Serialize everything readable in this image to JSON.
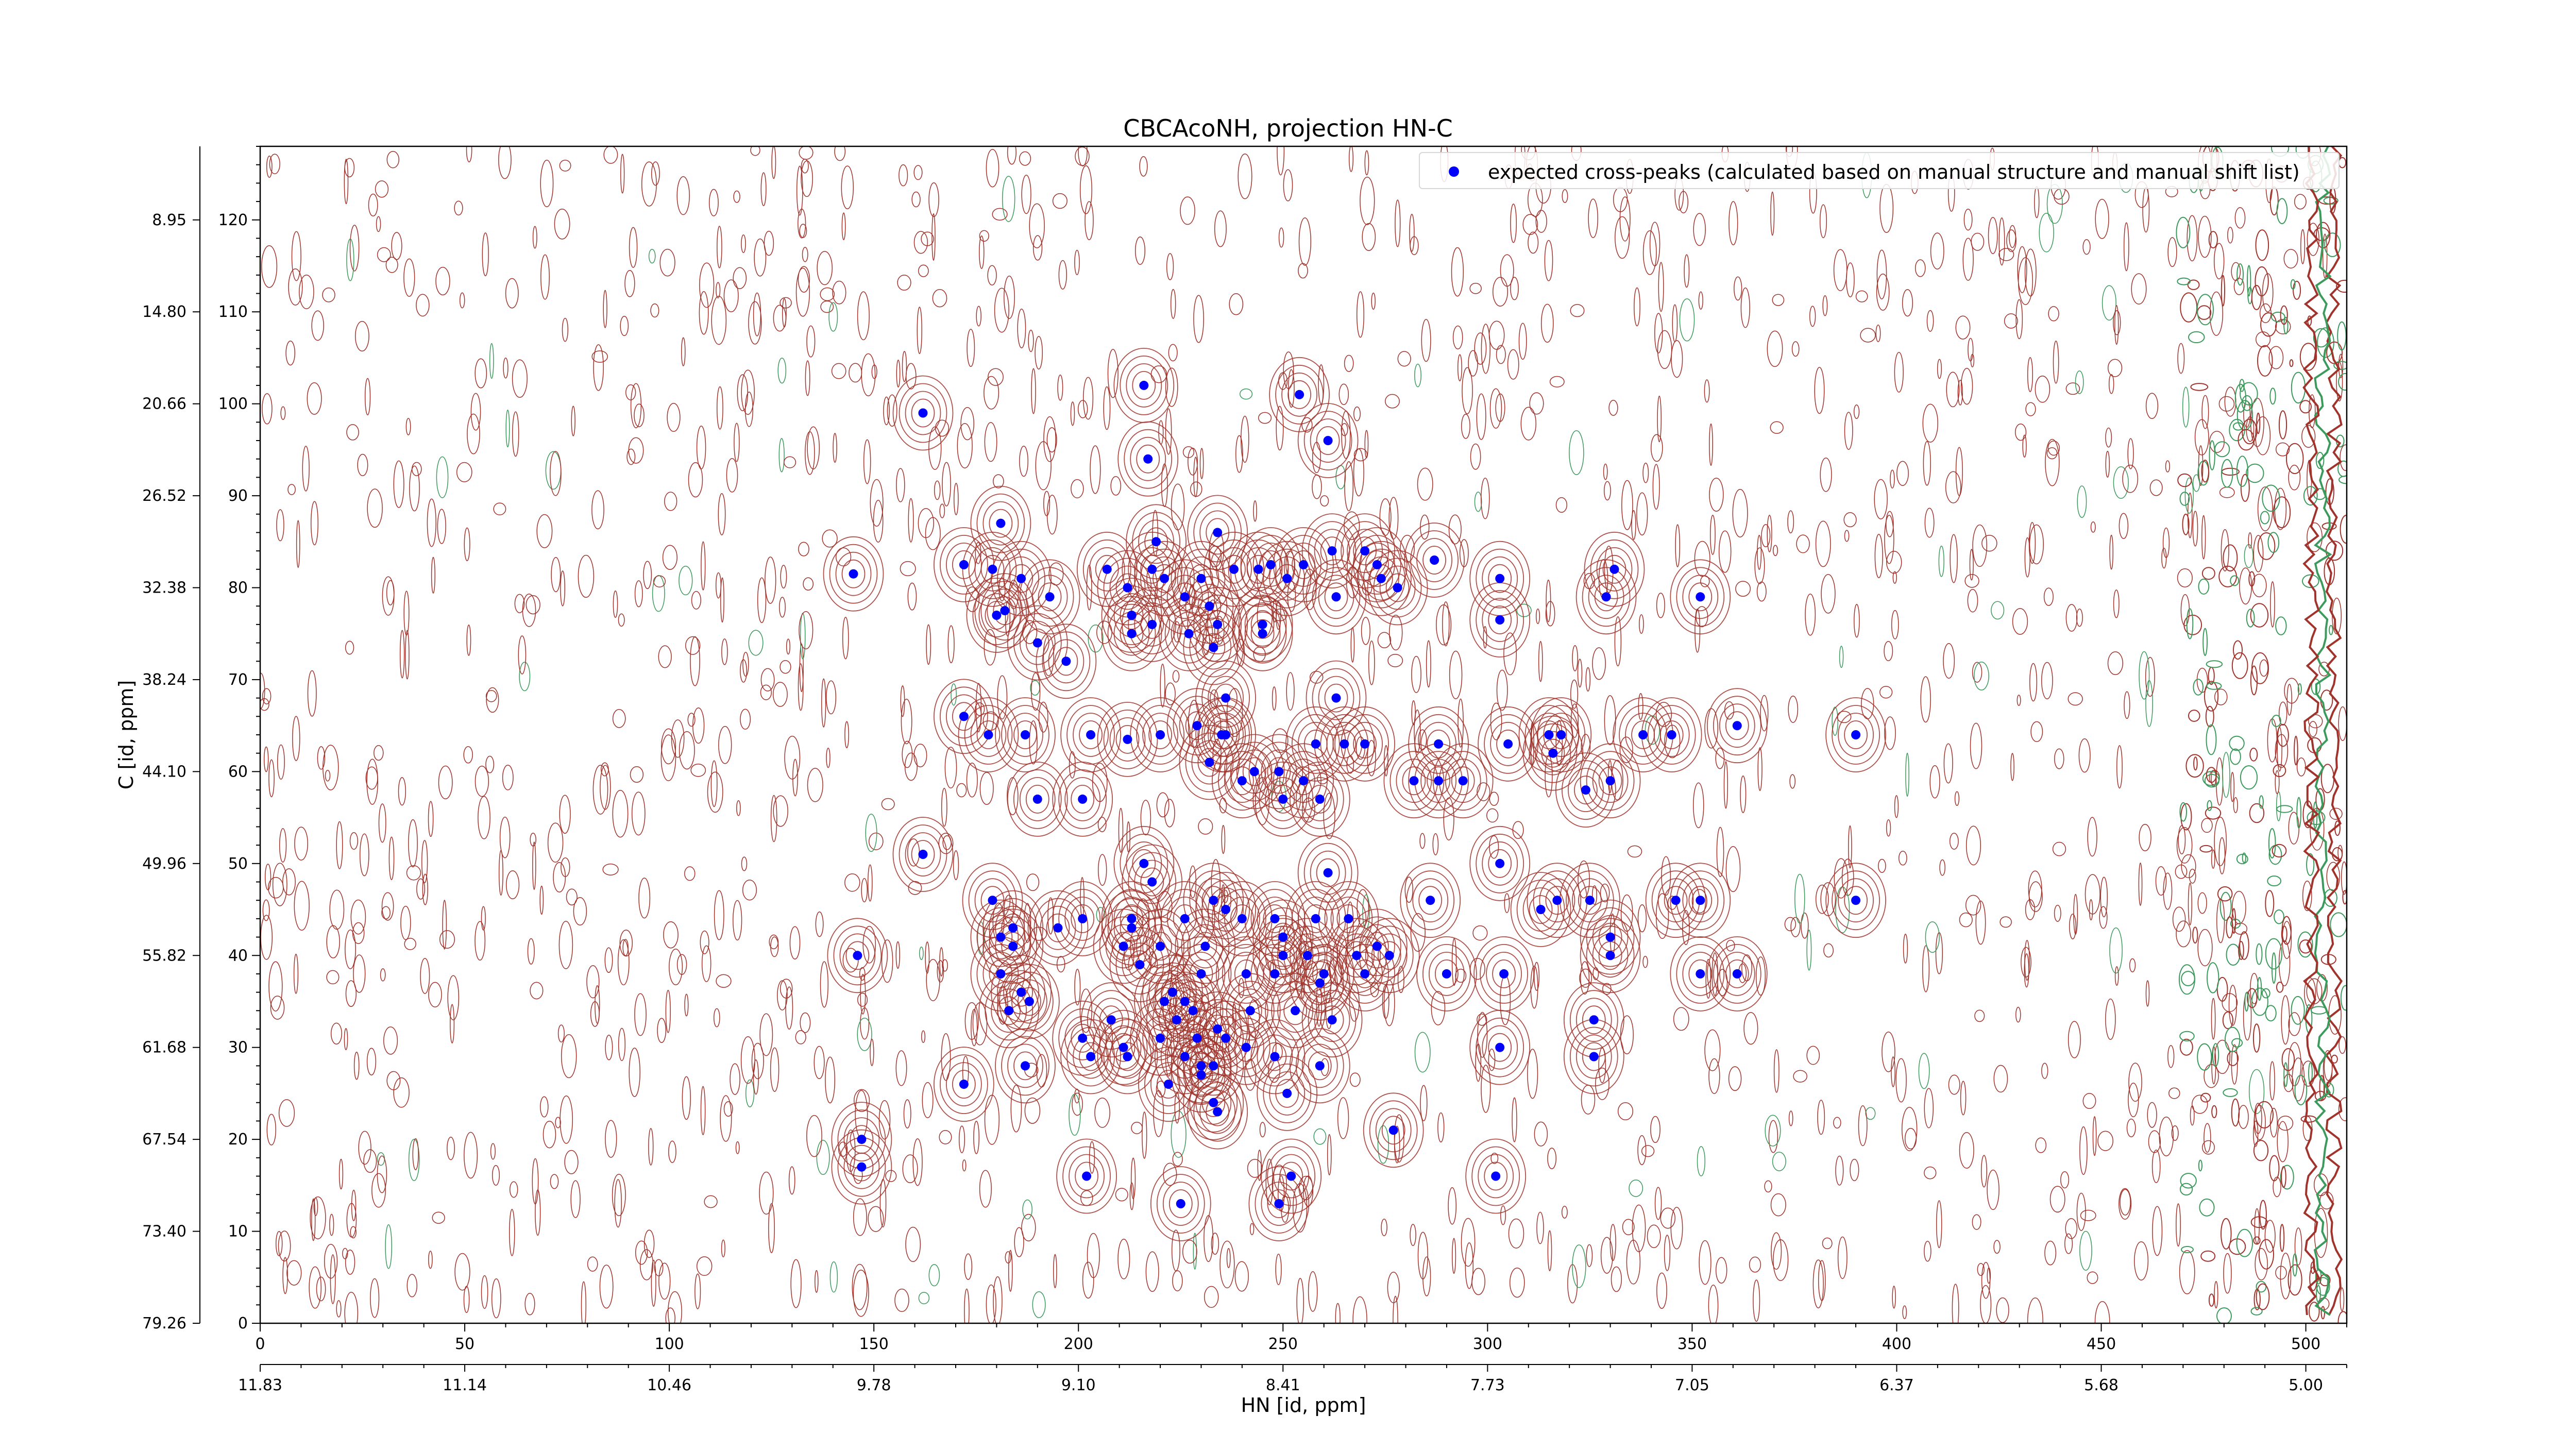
{
  "chart_data": {
    "type": "scatter",
    "title": "CBCAcoNH, projection HN-C",
    "xlabel": "HN [id, ppm]",
    "ylabel": "C [id, ppm]",
    "xlim": [
      0,
      510
    ],
    "ylim": [
      0,
      128
    ],
    "x_ticks_index": [
      "0",
      "50",
      "100",
      "150",
      "200",
      "250",
      "300",
      "350",
      "400",
      "450",
      "500"
    ],
    "x_ticks_ppm": [
      "11.83",
      "11.14",
      "10.46",
      "9.78",
      "9.10",
      "8.41",
      "7.73",
      "7.05",
      "6.37",
      "5.68",
      "5.00"
    ],
    "y_ticks_index": [
      "0",
      "10",
      "20",
      "30",
      "40",
      "50",
      "60",
      "70",
      "80",
      "90",
      "100",
      "110",
      "120"
    ],
    "y_ticks_ppm": [
      "79.26",
      "73.40",
      "67.54",
      "61.68",
      "55.82",
      "49.96",
      "44.10",
      "38.24",
      "32.38",
      "26.52",
      "20.66",
      "14.80",
      "8.95"
    ],
    "legend": {
      "placement": "top-right",
      "entries": [
        "expected cross-peaks (calculated based on manual structure and manual shift list)"
      ]
    },
    "grid": false,
    "colors": {
      "marker": "#0000ff",
      "contour_positive": "#a0342c",
      "contour_negative": "#3c9a5c"
    },
    "series": [
      {
        "name": "expected cross-peaks (calculated based on manual structure and manual shift list)",
        "points": [
          [
            162,
            99
          ],
          [
            145,
            81.5
          ],
          [
            172,
            82.5
          ],
          [
            179,
            82
          ],
          [
            181,
            87
          ],
          [
            186,
            81
          ],
          [
            180,
            77
          ],
          [
            182,
            77.5
          ],
          [
            193,
            79
          ],
          [
            190,
            74
          ],
          [
            197,
            72
          ],
          [
            207,
            82
          ],
          [
            212,
            80
          ],
          [
            213,
            77
          ],
          [
            213,
            75
          ],
          [
            218,
            76
          ],
          [
            218,
            82
          ],
          [
            219,
            85
          ],
          [
            221,
            81
          ],
          [
            226,
            79
          ],
          [
            227,
            75
          ],
          [
            230,
            81
          ],
          [
            232,
            78
          ],
          [
            234,
            76
          ],
          [
            234,
            86
          ],
          [
            233,
            73.5
          ],
          [
            238,
            82
          ],
          [
            244,
            82
          ],
          [
            245,
            76
          ],
          [
            247,
            82.5
          ],
          [
            251,
            81
          ],
          [
            255,
            82.5
          ],
          [
            262,
            84
          ],
          [
            263,
            79
          ],
          [
            270,
            84
          ],
          [
            274,
            81
          ],
          [
            273,
            82.5
          ],
          [
            278,
            80
          ],
          [
            287,
            83
          ],
          [
            303,
            81
          ],
          [
            303,
            76.5
          ],
          [
            329,
            79
          ],
          [
            331,
            82
          ],
          [
            352,
            79
          ],
          [
            216,
            102
          ],
          [
            254,
            101
          ],
          [
            261,
            96
          ],
          [
            217,
            94
          ],
          [
            245,
            75
          ],
          [
            172,
            66
          ],
          [
            178,
            64
          ],
          [
            187,
            64
          ],
          [
            203,
            64
          ],
          [
            212,
            63.5
          ],
          [
            220,
            64
          ],
          [
            229,
            65
          ],
          [
            235,
            64
          ],
          [
            236,
            68
          ],
          [
            236,
            64
          ],
          [
            232,
            61
          ],
          [
            240,
            59
          ],
          [
            243,
            60
          ],
          [
            249,
            60
          ],
          [
            250,
            57
          ],
          [
            255,
            59
          ],
          [
            259,
            57
          ],
          [
            258,
            63
          ],
          [
            263,
            68
          ],
          [
            265,
            63
          ],
          [
            270,
            63
          ],
          [
            282,
            59
          ],
          [
            288,
            59
          ],
          [
            294,
            59
          ],
          [
            288,
            63
          ],
          [
            305,
            63
          ],
          [
            315,
            64
          ],
          [
            318,
            64
          ],
          [
            316,
            62
          ],
          [
            324,
            58
          ],
          [
            330,
            59
          ],
          [
            338,
            64
          ],
          [
            345,
            64
          ],
          [
            361,
            65
          ],
          [
            390,
            64
          ],
          [
            190,
            57
          ],
          [
            201,
            57
          ],
          [
            162,
            51
          ],
          [
            216,
            50
          ],
          [
            218,
            48
          ],
          [
            261,
            49
          ],
          [
            303,
            50
          ],
          [
            172,
            26
          ],
          [
            179,
            46
          ],
          [
            181,
            42
          ],
          [
            184,
            43
          ],
          [
            181,
            38
          ],
          [
            184,
            41
          ],
          [
            186,
            36
          ],
          [
            195,
            43
          ],
          [
            201,
            44
          ],
          [
            211,
            41
          ],
          [
            213,
            43
          ],
          [
            215,
            39
          ],
          [
            213,
            44
          ],
          [
            220,
            41
          ],
          [
            221,
            35
          ],
          [
            226,
            44
          ],
          [
            231,
            41
          ],
          [
            230,
            38
          ],
          [
            233,
            46
          ],
          [
            236,
            45
          ],
          [
            240,
            44
          ],
          [
            241,
            38
          ],
          [
            248,
            38
          ],
          [
            250,
            42
          ],
          [
            250,
            40
          ],
          [
            248,
            44
          ],
          [
            256,
            40
          ],
          [
            258,
            44
          ],
          [
            260,
            38
          ],
          [
            266,
            44
          ],
          [
            268,
            40
          ],
          [
            270,
            38
          ],
          [
            273,
            41
          ],
          [
            276,
            40
          ],
          [
            290,
            38
          ],
          [
            286,
            46
          ],
          [
            304,
            38
          ],
          [
            313,
            45
          ],
          [
            317,
            46
          ],
          [
            325,
            46
          ],
          [
            330,
            42
          ],
          [
            330,
            40
          ],
          [
            346,
            46
          ],
          [
            352,
            46
          ],
          [
            352,
            38
          ],
          [
            361,
            38
          ],
          [
            390,
            46
          ],
          [
            146,
            40
          ],
          [
            183,
            34
          ],
          [
            188,
            35
          ],
          [
            187,
            28
          ],
          [
            201,
            31
          ],
          [
            203,
            29
          ],
          [
            208,
            33
          ],
          [
            211,
            30
          ],
          [
            212,
            29
          ],
          [
            220,
            31
          ],
          [
            223,
            36
          ],
          [
            224,
            33
          ],
          [
            226,
            35
          ],
          [
            228,
            34
          ],
          [
            229,
            31
          ],
          [
            226,
            29
          ],
          [
            230,
            28
          ],
          [
            233,
            28
          ],
          [
            234,
            32
          ],
          [
            236,
            31
          ],
          [
            241,
            30
          ],
          [
            242,
            34
          ],
          [
            248,
            29
          ],
          [
            253,
            34
          ],
          [
            259,
            37
          ],
          [
            262,
            33
          ],
          [
            259,
            28
          ],
          [
            222,
            26
          ],
          [
            230,
            27
          ],
          [
            233,
            24
          ],
          [
            234,
            23
          ],
          [
            251,
            25
          ],
          [
            303,
            30
          ],
          [
            326,
            33
          ],
          [
            326,
            29
          ],
          [
            147,
            20
          ],
          [
            147,
            17
          ],
          [
            202,
            16
          ],
          [
            225,
            13
          ],
          [
            249,
            13
          ],
          [
            252,
            16
          ],
          [
            277,
            21
          ],
          [
            302,
            16
          ]
        ]
      }
    ]
  }
}
